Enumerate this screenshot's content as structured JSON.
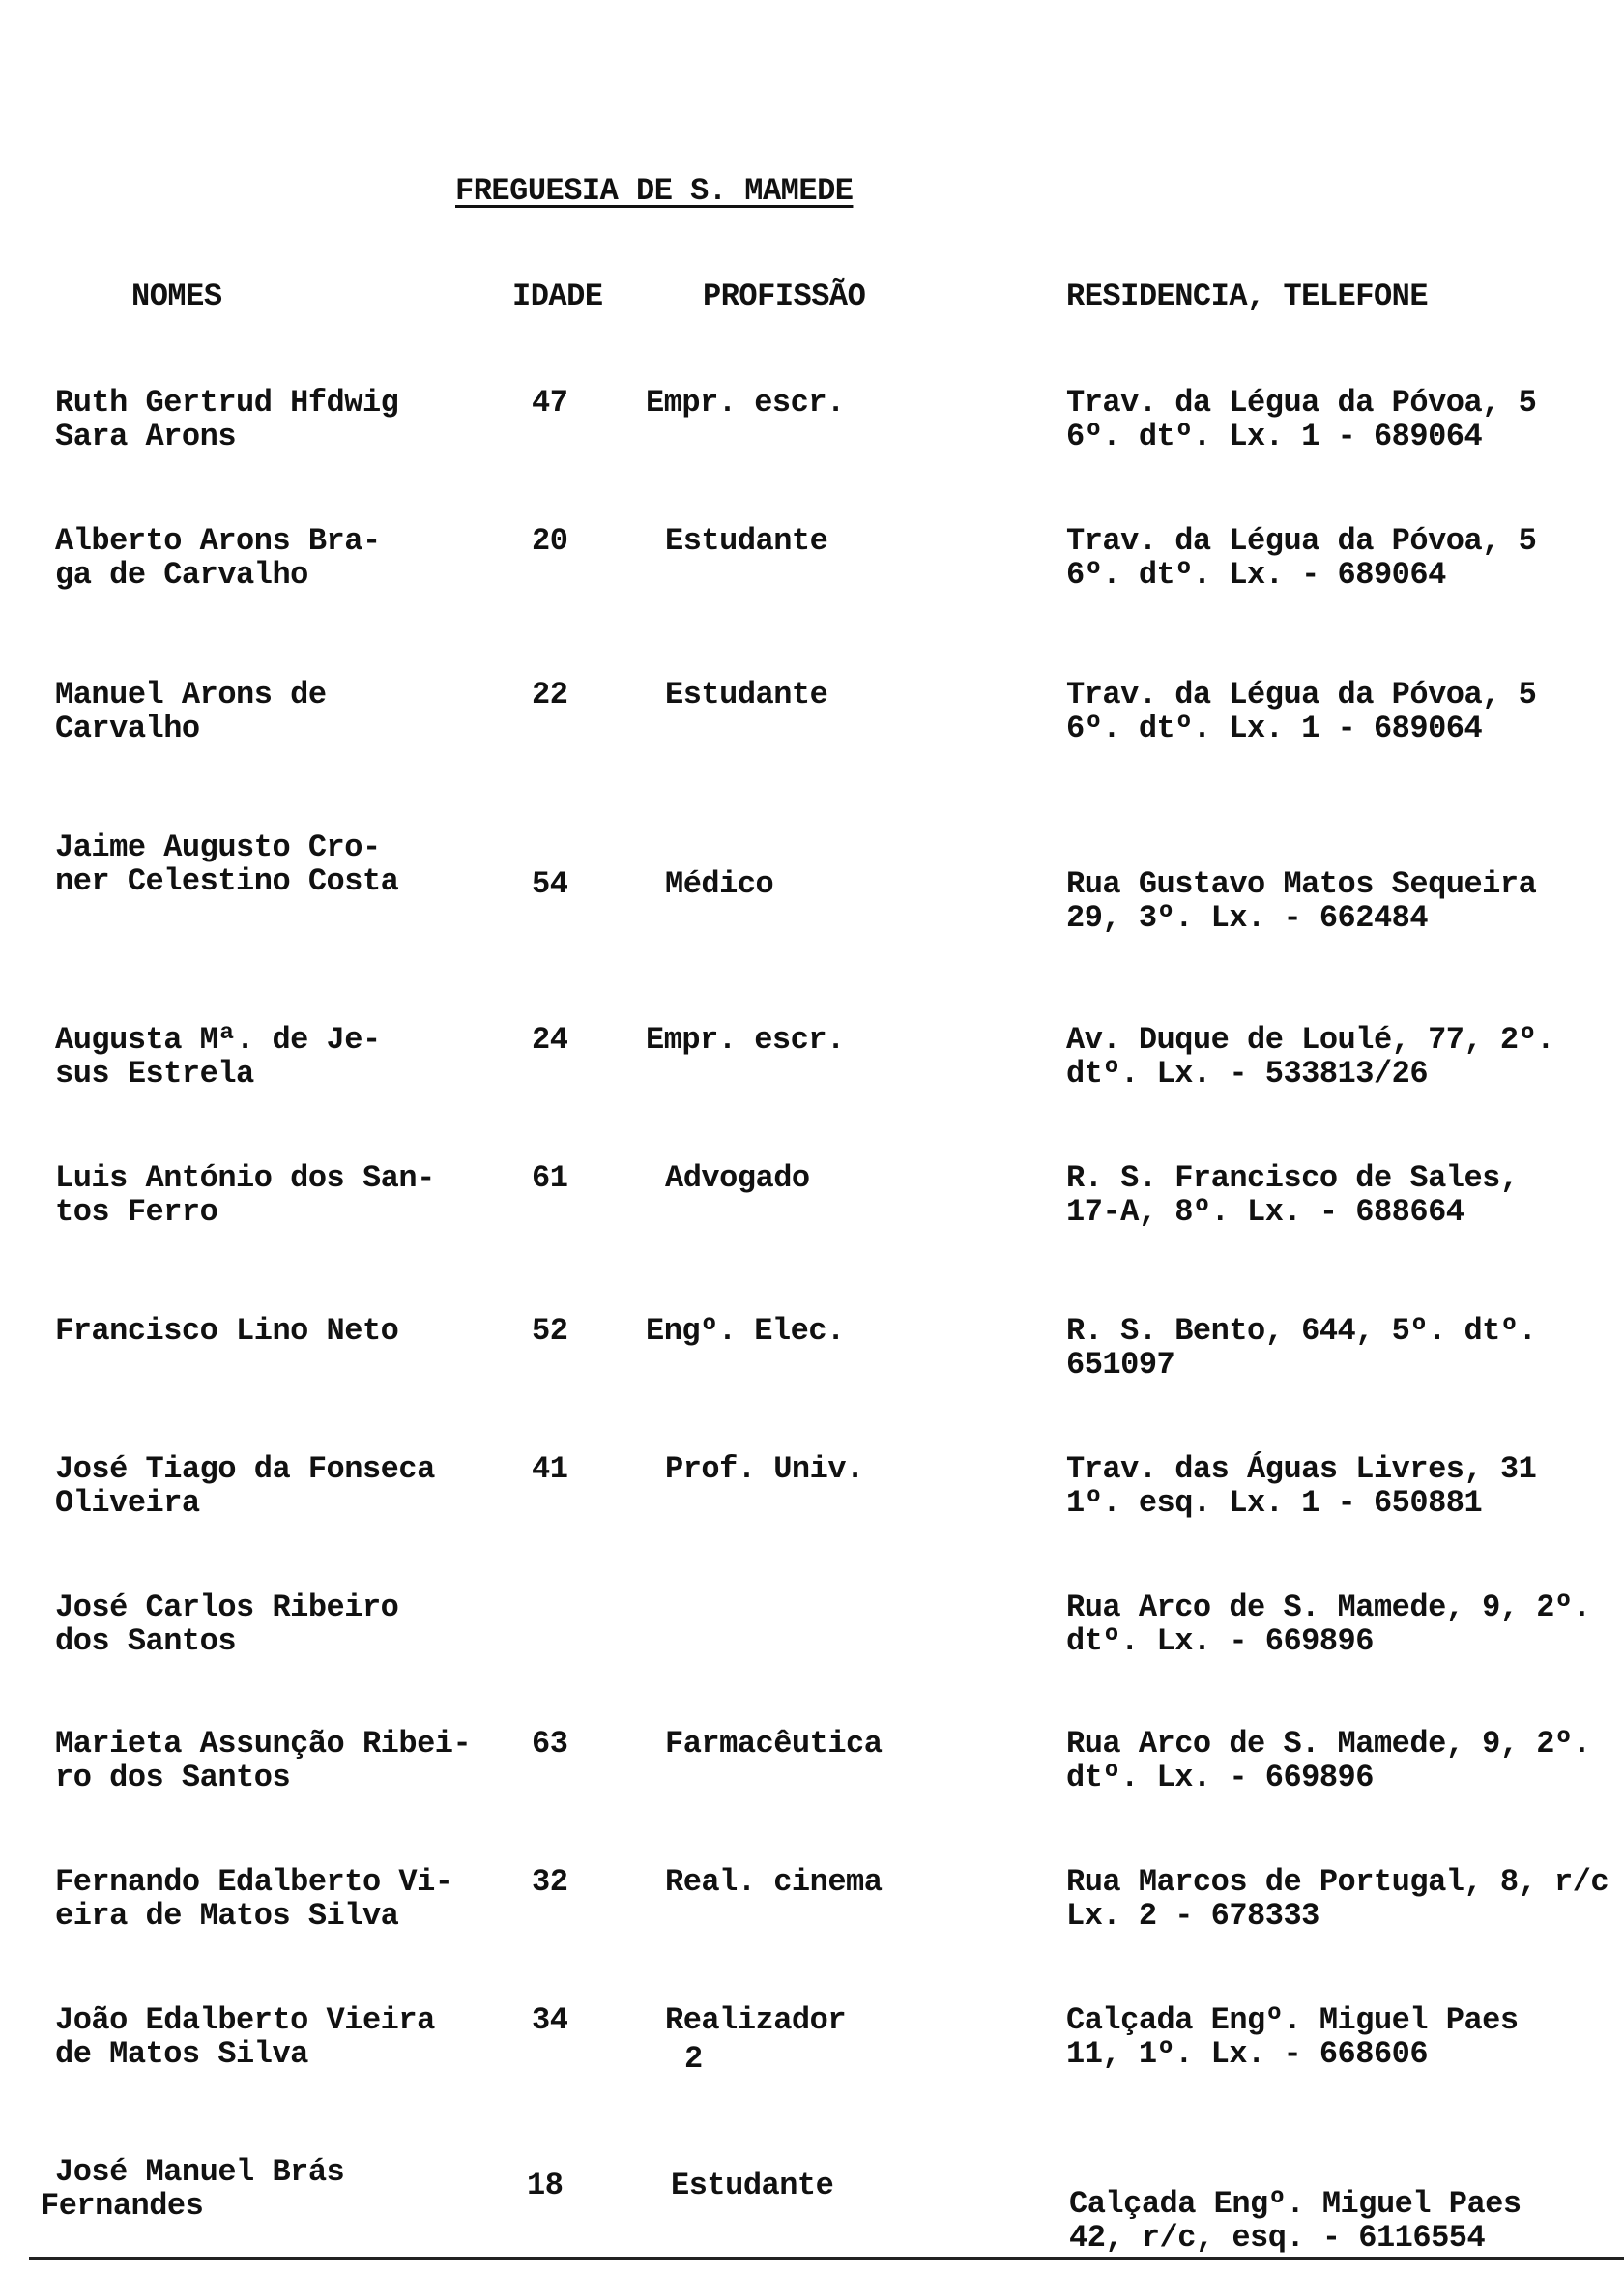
{
  "title": "FREGUESIA DE S. MAMEDE",
  "headers": {
    "nomes": "NOMES",
    "idade": "IDADE",
    "profissao": "PROFISSÃO",
    "residencia": "RESIDENCIA, TELEFONE"
  },
  "rows": [
    {
      "name": [
        "Ruth Gertrud Hfdwig",
        "Sara Arons"
      ],
      "age": "47",
      "profession": "Empr. escr.",
      "residence": [
        "Trav. da Légua da Póvoa, 5",
        "6º. dtº. Lx. 1 - 689064"
      ]
    },
    {
      "name": [
        "Alberto Arons Bra-",
        "ga de Carvalho"
      ],
      "age": "20",
      "profession": "Estudante",
      "residence": [
        "Trav. da Légua da Póvoa, 5",
        "6º. dtº. Lx. - 689064"
      ]
    },
    {
      "name": [
        "Manuel Arons de",
        "Carvalho"
      ],
      "age": "22",
      "profession": "Estudante",
      "residence": [
        "Trav. da Légua da Póvoa, 5",
        "6º. dtº. Lx. 1 - 689064"
      ]
    },
    {
      "name": [
        "Jaime Augusto Cro-",
        "ner Celestino Costa"
      ],
      "age": "54",
      "profession": "Médico",
      "residence": [
        "Rua Gustavo Matos Sequeira",
        "29, 3º. Lx. - 662484"
      ]
    },
    {
      "name": [
        "Augusta Mª. de Je-",
        "sus Estrela"
      ],
      "age": "24",
      "profession": "Empr. escr.",
      "residence": [
        "Av. Duque de Loulé, 77, 2º.",
        "dtº. Lx. - 533813/26"
      ]
    },
    {
      "name": [
        "Luis António dos San-",
        "tos Ferro"
      ],
      "age": "61",
      "profession": "Advogado",
      "residence": [
        "R. S. Francisco de Sales,",
        "17-A, 8º. Lx. - 688664"
      ]
    },
    {
      "name": [
        "Francisco Lino Neto"
      ],
      "age": "52",
      "profession": "Engº. Elec.",
      "residence": [
        "R. S. Bento, 644, 5º. dtº.",
        "651097"
      ]
    },
    {
      "name": [
        "José Tiago da Fonseca",
        "Oliveira"
      ],
      "age": "41",
      "profession": "Prof. Univ.",
      "residence": [
        "Trav. das Águas Livres, 31",
        "1º. esq. Lx. 1 - 650881"
      ]
    },
    {
      "name": [
        "José Carlos Ribeiro",
        "dos Santos"
      ],
      "age": "",
      "profession": "",
      "residence": [
        "Rua Arco de S. Mamede, 9, 2º.",
        "dtº. Lx. - 669896"
      ]
    },
    {
      "name": [
        "Marieta Assunção Ribei-",
        "ro dos Santos"
      ],
      "age": "63",
      "profession": "Farmacêutica",
      "residence": [
        "Rua Arco de S. Mamede, 9, 2º.",
        "dtº. Lx. - 669896"
      ]
    },
    {
      "name": [
        "Fernando Edalberto Vi-",
        "eira de Matos Silva"
      ],
      "age": "32",
      "profession": "Real. cinema",
      "residence": [
        "Rua Marcos de Portugal, 8, r/c",
        "Lx. 2 - 678333"
      ]
    },
    {
      "name": [
        "João Edalberto Vieira",
        "de Matos Silva"
      ],
      "age": "34",
      "profession": "Realizador",
      "residence": [
        "Calçada Engº. Miguel Paes",
        "11, 1º. Lx. - 668606"
      ]
    },
    {
      "name": [
        "José Manuel Brás",
        "Fernandes"
      ],
      "age": "18",
      "profession": "Estudante",
      "residence": [
        "Calçada Engº. Miguel Paes",
        "42, r/c, esq. - 6116554"
      ]
    }
  ],
  "page_number": "2"
}
